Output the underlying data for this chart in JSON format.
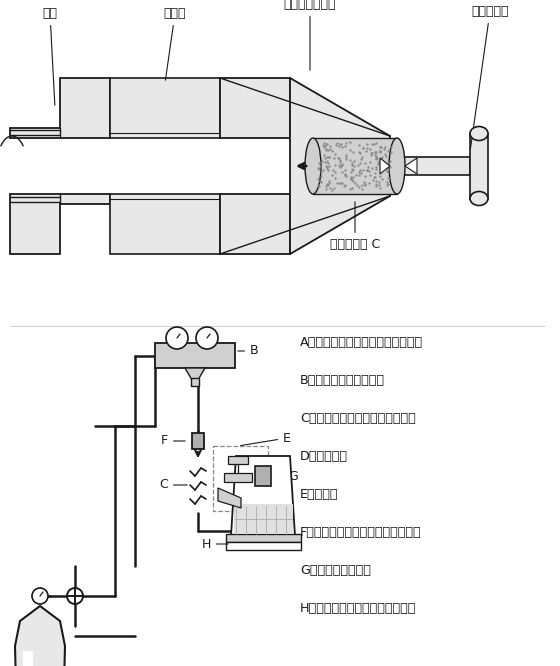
{
  "bg_color": "#ffffff",
  "lc": "#1a1a1a",
  "g1": "#e8e8e8",
  "g2": "#d0d0d0",
  "g3": "#b0b0b0",
  "legend": [
    "A、窒素ボンベ（レギュレータ付）",
    "B、ゲージマニホールド",
    "C、スウィーパ（管径毎３種類）",
    "D、挿入治具",
    "E、押し棒",
    "F、管ジョイント（管径毎３種類）",
    "G、スウィーパ受け",
    "H、コンタミ受け容器（バケツ）"
  ],
  "label_haikan": "配管",
  "label_natto": "ナット",
  "label_sonyujigu": "挿　入　治　具",
  "label_oshibo": "押　し　棒",
  "label_sweeperC": "スウィーパ C"
}
